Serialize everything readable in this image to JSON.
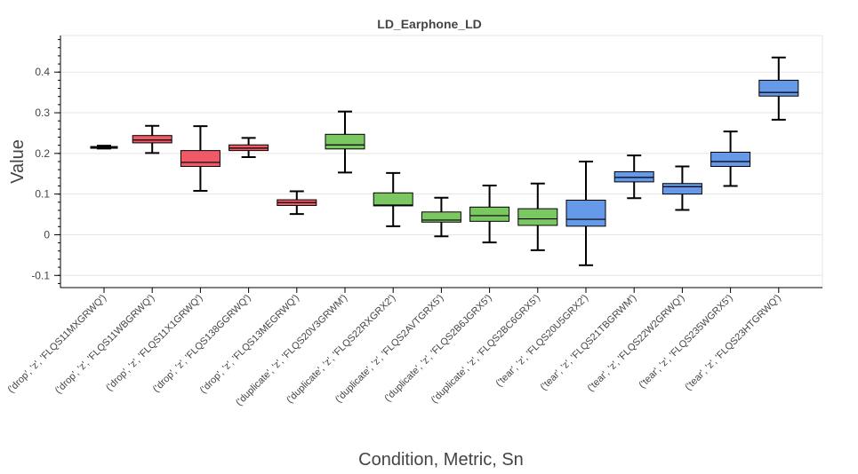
{
  "chart_data": {
    "type": "box",
    "title": "LD_Earphone_LD",
    "xlabel": "Condition, Metric, Sn",
    "ylabel": "Value",
    "ylim": [
      -0.13,
      0.49
    ],
    "yticks": [
      -0.1,
      0,
      0.1,
      0.2,
      0.3,
      0.4
    ],
    "ytick_labels": [
      "-0.1",
      "0",
      "0.1",
      "0.2",
      "0.3",
      "0.4"
    ],
    "grid": true,
    "legend": "none",
    "colors": {
      "drop": "#f05a67",
      "duplicate": "#7bc862",
      "tear": "#6699e8"
    },
    "categories": [
      "('drop', 'z', 'FLQS11MXGRWQ')",
      "('drop', 'z', 'FLQS11WBGRWQ')",
      "('drop', 'z', 'FLQS11X1GRWQ')",
      "('drop', 'z', 'FLQS138GGRWQ')",
      "('drop', 'z', 'FLQS13MEGRWQ')",
      "('duplicate', 'z', 'FLQS20V3GRWM')",
      "('duplicate', 'z', 'FLQS22RXGRX2')",
      "('duplicate', 'z', 'FLQS2AVTGRX5')",
      "('duplicate', 'z', 'FLQS2B6JGRX5')",
      "('duplicate', 'z', 'FLQS2BC6GRX5')",
      "('tear', 'z', 'FLQS20U5GRX2')",
      "('tear', 'z', 'FLQS21TBGRWM')",
      "('tear', 'z', 'FLQS22W2GRWQ')",
      "('tear', 'z', 'FLQS235WGRX5')",
      "('tear', 'z', 'FLQS23HTGRWQ')"
    ],
    "groups": [
      "drop",
      "drop",
      "drop",
      "drop",
      "drop",
      "duplicate",
      "duplicate",
      "duplicate",
      "duplicate",
      "duplicate",
      "tear",
      "tear",
      "tear",
      "tear",
      "tear"
    ],
    "boxes": [
      {
        "whisker_low": 0.212,
        "q1": 0.213,
        "median": 0.215,
        "q3": 0.217,
        "whisker_high": 0.219
      },
      {
        "whisker_low": 0.201,
        "q1": 0.226,
        "median": 0.233,
        "q3": 0.244,
        "whisker_high": 0.268
      },
      {
        "whisker_low": 0.108,
        "q1": 0.168,
        "median": 0.178,
        "q3": 0.207,
        "whisker_high": 0.267
      },
      {
        "whisker_low": 0.191,
        "q1": 0.207,
        "median": 0.213,
        "q3": 0.221,
        "whisker_high": 0.238
      },
      {
        "whisker_low": 0.051,
        "q1": 0.072,
        "median": 0.079,
        "q3": 0.086,
        "whisker_high": 0.107
      },
      {
        "whisker_low": 0.153,
        "q1": 0.211,
        "median": 0.221,
        "q3": 0.247,
        "whisker_high": 0.303
      },
      {
        "whisker_low": 0.021,
        "q1": 0.071,
        "median": 0.073,
        "q3": 0.103,
        "whisker_high": 0.152
      },
      {
        "whisker_low": -0.004,
        "q1": 0.031,
        "median": 0.036,
        "q3": 0.056,
        "whisker_high": 0.091
      },
      {
        "whisker_low": -0.019,
        "q1": 0.033,
        "median": 0.047,
        "q3": 0.068,
        "whisker_high": 0.121
      },
      {
        "whisker_low": -0.038,
        "q1": 0.023,
        "median": 0.039,
        "q3": 0.064,
        "whisker_high": 0.126
      },
      {
        "whisker_low": -0.075,
        "q1": 0.021,
        "median": 0.038,
        "q3": 0.085,
        "whisker_high": 0.18
      },
      {
        "whisker_low": 0.09,
        "q1": 0.13,
        "median": 0.141,
        "q3": 0.155,
        "whisker_high": 0.195
      },
      {
        "whisker_low": 0.061,
        "q1": 0.1,
        "median": 0.118,
        "q3": 0.126,
        "whisker_high": 0.168
      },
      {
        "whisker_low": 0.12,
        "q1": 0.168,
        "median": 0.18,
        "q3": 0.203,
        "whisker_high": 0.254
      },
      {
        "whisker_low": 0.283,
        "q1": 0.341,
        "median": 0.35,
        "q3": 0.38,
        "whisker_high": 0.436
      }
    ]
  }
}
